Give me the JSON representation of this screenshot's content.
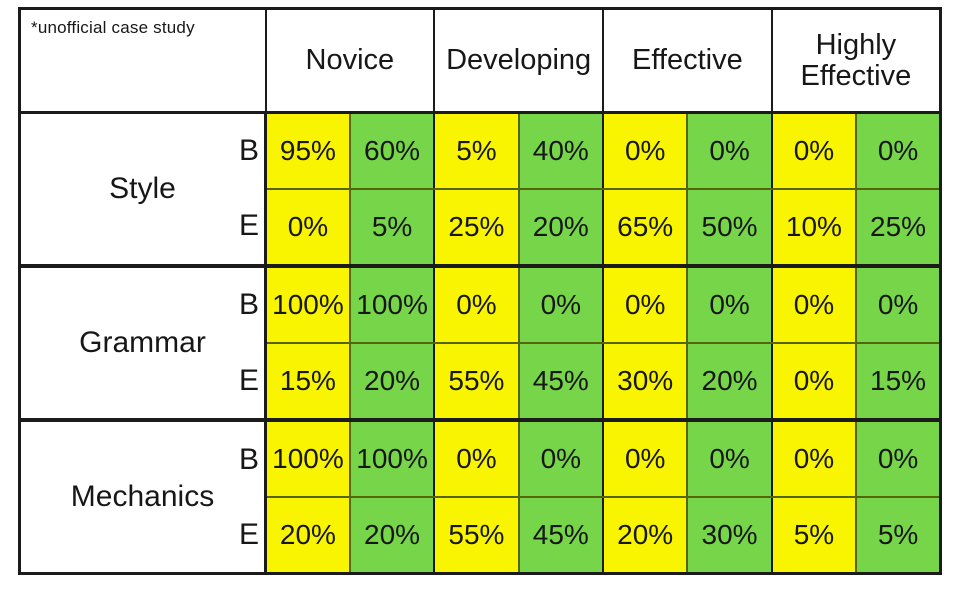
{
  "chart_data": {
    "type": "table",
    "note": "*unofficial case study",
    "column_groups": [
      "Novice",
      "Developing",
      "Effective",
      "Highly Effective"
    ],
    "sub_columns_per_group": 2,
    "cell_color_pattern": [
      "yellow",
      "green",
      "yellow",
      "green",
      "yellow",
      "green",
      "yellow",
      "green"
    ],
    "colors": {
      "yellow": "#f9f400",
      "green": "#77d54a",
      "line_dark": "#1b1b1b",
      "line_olive": "#55660a"
    },
    "row_groups": [
      {
        "category": "Style",
        "rows": [
          {
            "label": "B",
            "values": [
              "95%",
              "60%",
              "5%",
              "40%",
              "0%",
              "0%",
              "0%",
              "0%"
            ]
          },
          {
            "label": "E",
            "values": [
              "0%",
              "5%",
              "25%",
              "20%",
              "65%",
              "50%",
              "10%",
              "25%"
            ]
          }
        ]
      },
      {
        "category": "Grammar",
        "rows": [
          {
            "label": "B",
            "values": [
              "100%",
              "100%",
              "0%",
              "0%",
              "0%",
              "0%",
              "0%",
              "0%"
            ]
          },
          {
            "label": "E",
            "values": [
              "15%",
              "20%",
              "55%",
              "45%",
              "30%",
              "20%",
              "0%",
              "15%"
            ]
          }
        ]
      },
      {
        "category": "Mechanics",
        "rows": [
          {
            "label": "B",
            "values": [
              "100%",
              "100%",
              "0%",
              "0%",
              "0%",
              "0%",
              "0%",
              "0%"
            ]
          },
          {
            "label": "E",
            "values": [
              "20%",
              "20%",
              "55%",
              "45%",
              "20%",
              "30%",
              "5%",
              "5%"
            ]
          }
        ]
      }
    ]
  }
}
